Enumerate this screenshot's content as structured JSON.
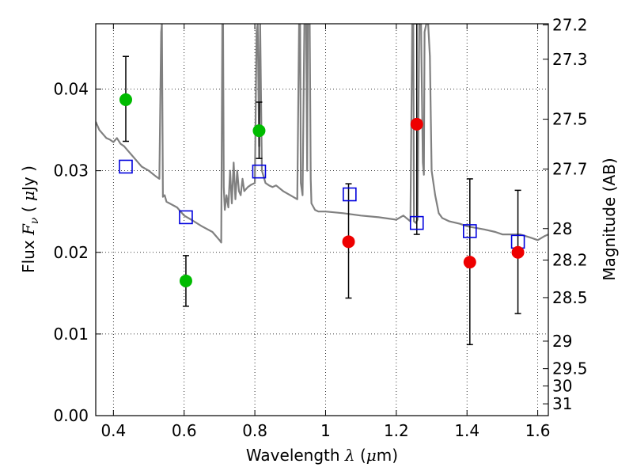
{
  "chart_data": {
    "type": "scatter",
    "xlabel": "Wavelength  λ (μm)",
    "xlabel_parts": {
      "pre": "Wavelength  ",
      "sym": "λ",
      "post": " (",
      "mu": "μ",
      "unit": "m)"
    },
    "ylabel": "Flux  Fν  ( μJy )",
    "ylabel_parts": {
      "pre": "Flux  ",
      "sym": "F",
      "sub": "ν",
      "mid": "  ( ",
      "mu": "μ",
      "unit": "Jy )"
    },
    "y2label": "Magnitude (AB)",
    "xlim": [
      0.35,
      1.63
    ],
    "ylim": [
      0.0,
      0.048
    ],
    "grid": true,
    "x_ticks": [
      0.4,
      0.6,
      0.8,
      1.0,
      1.2,
      1.4,
      1.6
    ],
    "x_tick_labels": [
      "0.4",
      "0.6",
      "0.8",
      "1",
      "1.2",
      "1.4",
      "1.6"
    ],
    "y_ticks": [
      0.0,
      0.01,
      0.02,
      0.03,
      0.04
    ],
    "y_tick_labels": [
      "0.00",
      "0.01",
      "0.02",
      "0.03",
      "0.04"
    ],
    "y2_ticks": [
      27.2,
      27.3,
      27.5,
      27.7,
      28,
      28.2,
      28.5,
      29,
      29.5,
      30,
      31
    ],
    "y2_tick_labels": [
      "27.2",
      "27.3",
      "27.5",
      "27.7",
      "28",
      "28.2",
      "28.5",
      "29",
      "29.5",
      "30",
      "31"
    ],
    "colors": {
      "green_points": "#00bb00",
      "red_points": "#ee0000",
      "model_squares": "#0000dd",
      "sed_line": "#808080",
      "error_bars": "#000000"
    },
    "series": [
      {
        "marker": "circle",
        "color": "green",
        "x": [
          0.435,
          0.605,
          0.812
        ],
        "y": [
          0.0387,
          0.0165,
          0.0349
        ],
        "err_low": [
          0.0336,
          0.0134,
          0.0315
        ],
        "err_high": [
          0.044,
          0.0196,
          0.0384
        ]
      },
      {
        "marker": "circle",
        "color": "red",
        "x": [
          1.065,
          1.258,
          1.408,
          1.544
        ],
        "y": [
          0.0213,
          0.0357,
          0.0188,
          0.02
        ],
        "err_low": [
          0.0144,
          0.0222,
          0.0087,
          0.0125
        ],
        "err_high": [
          0.0284,
          0.048,
          0.029,
          0.0276
        ]
      },
      {
        "marker": "open-square",
        "color": "blue",
        "x": [
          0.435,
          0.605,
          0.812,
          1.068,
          1.258,
          1.408,
          1.544
        ],
        "y": [
          0.0305,
          0.0243,
          0.0299,
          0.0271,
          0.0236,
          0.0226,
          0.0213
        ]
      },
      {
        "marker": "line",
        "color": "gray",
        "x": [
          0.35,
          0.36,
          0.37,
          0.38,
          0.39,
          0.4,
          0.41,
          0.42,
          0.43,
          0.44,
          0.45,
          0.46,
          0.47,
          0.48,
          0.5,
          0.52,
          0.53,
          0.535,
          0.537,
          0.54,
          0.545,
          0.55,
          0.58,
          0.6,
          0.62,
          0.65,
          0.68,
          0.7,
          0.705,
          0.708,
          0.71,
          0.712,
          0.715,
          0.72,
          0.725,
          0.73,
          0.735,
          0.74,
          0.745,
          0.75,
          0.755,
          0.76,
          0.765,
          0.77,
          0.78,
          0.79,
          0.8,
          0.805,
          0.808,
          0.812,
          0.815,
          0.82,
          0.83,
          0.84,
          0.85,
          0.86,
          0.88,
          0.9,
          0.92,
          0.925,
          0.928,
          0.93,
          0.935,
          0.94,
          0.945,
          0.948,
          0.95,
          0.955,
          0.958,
          0.96,
          0.97,
          0.98,
          1.0,
          1.05,
          1.1,
          1.15,
          1.2,
          1.22,
          1.24,
          1.245,
          1.248,
          1.25,
          1.255,
          1.26,
          1.265,
          1.27,
          1.275,
          1.278,
          1.28,
          1.285,
          1.29,
          1.295,
          1.3,
          1.31,
          1.32,
          1.33,
          1.35,
          1.38,
          1.4,
          1.45,
          1.48,
          1.5,
          1.55,
          1.58,
          1.6,
          1.62,
          1.63
        ],
        "y": [
          0.036,
          0.035,
          0.0345,
          0.034,
          0.0338,
          0.0335,
          0.034,
          0.0333,
          0.033,
          0.0325,
          0.032,
          0.0315,
          0.031,
          0.0305,
          0.03,
          0.0293,
          0.029,
          0.047,
          0.048,
          0.0268,
          0.027,
          0.0262,
          0.0255,
          0.0245,
          0.024,
          0.0232,
          0.0225,
          0.0215,
          0.0212,
          0.048,
          0.048,
          0.028,
          0.0252,
          0.027,
          0.0255,
          0.03,
          0.026,
          0.031,
          0.0265,
          0.03,
          0.0275,
          0.027,
          0.029,
          0.0275,
          0.028,
          0.0283,
          0.0285,
          0.047,
          0.048,
          0.033,
          0.048,
          0.03,
          0.0285,
          0.0282,
          0.028,
          0.0282,
          0.0275,
          0.027,
          0.0265,
          0.048,
          0.048,
          0.0285,
          0.027,
          0.048,
          0.048,
          0.03,
          0.048,
          0.048,
          0.029,
          0.026,
          0.0252,
          0.025,
          0.025,
          0.0248,
          0.0245,
          0.0243,
          0.024,
          0.0245,
          0.0238,
          0.048,
          0.048,
          0.0238,
          0.0236,
          0.024,
          0.048,
          0.048,
          0.031,
          0.0295,
          0.047,
          0.048,
          0.048,
          0.044,
          0.03,
          0.027,
          0.0248,
          0.0242,
          0.0238,
          0.0235,
          0.0232,
          0.0228,
          0.0225,
          0.0222,
          0.0222,
          0.0218,
          0.0215,
          0.022,
          0.0222
        ]
      }
    ]
  }
}
